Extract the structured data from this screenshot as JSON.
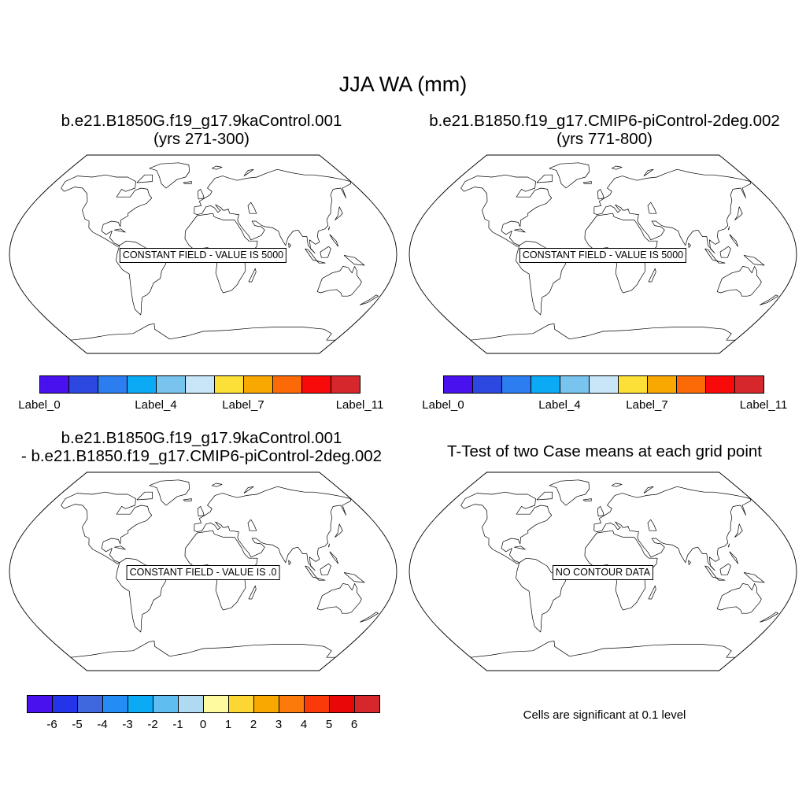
{
  "title": "JJA WA (mm)",
  "panels": [
    {
      "title_line1": "b.e21.B1850G.f19_g17.9kaControl.001",
      "title_line2": "(yrs 271-300)",
      "message": "CONSTANT FIELD - VALUE IS 5000"
    },
    {
      "title_line1": "b.e21.B1850.f19_g17.CMIP6-piControl-2deg.002",
      "title_line2": "(yrs 771-800)",
      "message": "CONSTANT FIELD - VALUE IS 5000"
    },
    {
      "title_line1": "b.e21.B1850G.f19_g17.9kaControl.001",
      "title_line2": "- b.e21.B1850.f19_g17.CMIP6-piControl-2deg.002",
      "message": "CONSTANT FIELD - VALUE IS .0"
    },
    {
      "title_line1": "T-Test of two Case means at each grid point",
      "message": "NO CONTOUR DATA",
      "note": "Cells are significant at 0.1 level"
    }
  ],
  "colorbar_case": {
    "colors": [
      "#4a11ef",
      "#2c48e0",
      "#2c7ef0",
      "#0aaaf5",
      "#78c4ee",
      "#c8e6f8",
      "#fce038",
      "#f9a802",
      "#fb6a07",
      "#f80a0a",
      "#d6282c"
    ],
    "labels": [
      "Label_0",
      "Label_4",
      "Label_7",
      "Label_11"
    ]
  },
  "colorbar_diff": {
    "colors": [
      "#4a11ef",
      "#2434e8",
      "#3f68df",
      "#248cf5",
      "#0aaaf5",
      "#5fbdef",
      "#b0d9f2",
      "#fefaa0",
      "#fcd733",
      "#f9a802",
      "#fb7a0a",
      "#fb3a0b",
      "#e80808",
      "#d6282c"
    ],
    "labels": [
      "-6",
      "-5",
      "-4",
      "-3",
      "-2",
      "-1",
      "0",
      "1",
      "2",
      "3",
      "4",
      "5",
      "6"
    ]
  }
}
